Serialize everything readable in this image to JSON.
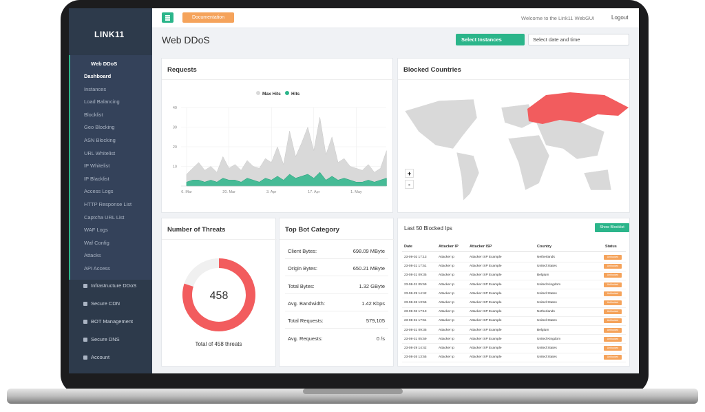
{
  "brand": "LINK11",
  "sidebar": {
    "section": "Web DDoS",
    "items": [
      "Dashboard",
      "Instances",
      "Load Balancing",
      "Blocklist",
      "Geo Blocking",
      "ASN Blocking",
      "URL Whitelist",
      "IP Whitelist",
      "IP Blacklist",
      "Access Logs",
      "HTTP Response List",
      "Captcha URL List",
      "WAF Logs",
      "Waf Config",
      "Attacks",
      "API Access"
    ],
    "other": [
      "Infrastructure DDoS",
      "Secure CDN",
      "BOT Management",
      "Secure DNS",
      "Account"
    ]
  },
  "header": {
    "documentation": "Documentation",
    "welcome": "Welcome to the Link11 WebGUI",
    "logout": "Logout"
  },
  "page_title": "Web DDoS",
  "controls": {
    "instances": "Select Instances",
    "date": "Select date and time"
  },
  "requests_chart": {
    "type": "area",
    "title": "Requests",
    "categories": [
      "6. Mar",
      null,
      null,
      null,
      null,
      null,
      null,
      "20. Mar",
      null,
      null,
      null,
      null,
      null,
      null,
      "3. Apr",
      null,
      null,
      null,
      null,
      null,
      null,
      "17. Apr",
      null,
      null,
      null,
      null,
      null,
      null,
      "1. May",
      null,
      null,
      null,
      null,
      null
    ],
    "series": [
      {
        "name": "Max Hits",
        "color": "#d9d9d9",
        "values": [
          6,
          9,
          12,
          8,
          10,
          7,
          15,
          9,
          11,
          8,
          13,
          10,
          9,
          14,
          12,
          20,
          11,
          28,
          15,
          22,
          30,
          18,
          35,
          16,
          25,
          12,
          14,
          10,
          9,
          8,
          11,
          7,
          9,
          18
        ]
      },
      {
        "name": "Hits",
        "color": "#2bb58a",
        "values": [
          2,
          3,
          3,
          2,
          3,
          2,
          4,
          3,
          3,
          2,
          4,
          3,
          2,
          4,
          3,
          5,
          3,
          6,
          4,
          5,
          6,
          4,
          7,
          3,
          5,
          3,
          4,
          3,
          2,
          2,
          3,
          2,
          3,
          4
        ]
      }
    ],
    "ylim": [
      0,
      40
    ],
    "yticks": [
      10,
      20,
      30,
      40
    ]
  },
  "blocked_countries": {
    "title": "Blocked Countries",
    "zoom_in": "+",
    "zoom_out": "-"
  },
  "threats": {
    "title": "Number of Threats",
    "value": 458,
    "caption": "Total of 458 threats"
  },
  "bot_category": {
    "title": "Top Bot Category",
    "rows": [
      [
        "Client Bytes:",
        "698.09 MByte"
      ],
      [
        "Origin Bytes:",
        "650.21 MByte"
      ],
      [
        "Total Bytes:",
        "1.32 GByte"
      ],
      [
        "Avg. Bandwidth:",
        "1.42 Kbps"
      ],
      [
        "Total Requests:",
        "579,105"
      ],
      [
        "Avg. Requests:",
        "0 /s"
      ]
    ]
  },
  "blocked_ips": {
    "title": "Last 50 Blocked Ips",
    "button": "Show Blocklist",
    "columns": [
      "Date",
      "Attacker IP",
      "Attacker ISP",
      "Country",
      "Status"
    ],
    "rows": [
      [
        "23-09-02 17:13",
        "Attacker Ip",
        "Attacker ISP Example",
        "Netherlands",
        "Unblocked"
      ],
      [
        "23-08-31 17:51",
        "Attacker Ip",
        "Attacker ISP Example",
        "United States",
        "Unblocked"
      ],
      [
        "23-08-31 09:35",
        "Attacker Ip",
        "Attacker ISP Example",
        "Belgium",
        "Unblocked"
      ],
      [
        "23-08-31 05:59",
        "Attacker Ip",
        "Attacker ISP Example",
        "United Kingdom",
        "Unblocked"
      ],
      [
        "23-08-29 14:42",
        "Attacker Ip",
        "Attacker ISP Example",
        "United States",
        "Unblocked"
      ],
      [
        "23-08-26 13:55",
        "Attacker Ip",
        "Attacker ISP Example",
        "United States",
        "Unblocked"
      ],
      [
        "23-09-02 17:13",
        "Attacker Ip",
        "Attacker ISP Example",
        "Netherlands",
        "Unblocked"
      ],
      [
        "23-08-31 17:51",
        "Attacker Ip",
        "Attacker ISP Example",
        "United States",
        "Unblocked"
      ],
      [
        "23-08-31 09:35",
        "Attacker Ip",
        "Attacker ISP Example",
        "Belgium",
        "Unblocked"
      ],
      [
        "23-08-31 05:59",
        "Attacker Ip",
        "Attacker ISP Example",
        "United Kingdom",
        "Unblocked"
      ],
      [
        "23-08-29 14:42",
        "Attacker Ip",
        "Attacker ISP Example",
        "United States",
        "Unblocked"
      ],
      [
        "23-08-26 13:55",
        "Attacker Ip",
        "Attacker ISP Example",
        "United States",
        "Unblocked"
      ]
    ]
  }
}
